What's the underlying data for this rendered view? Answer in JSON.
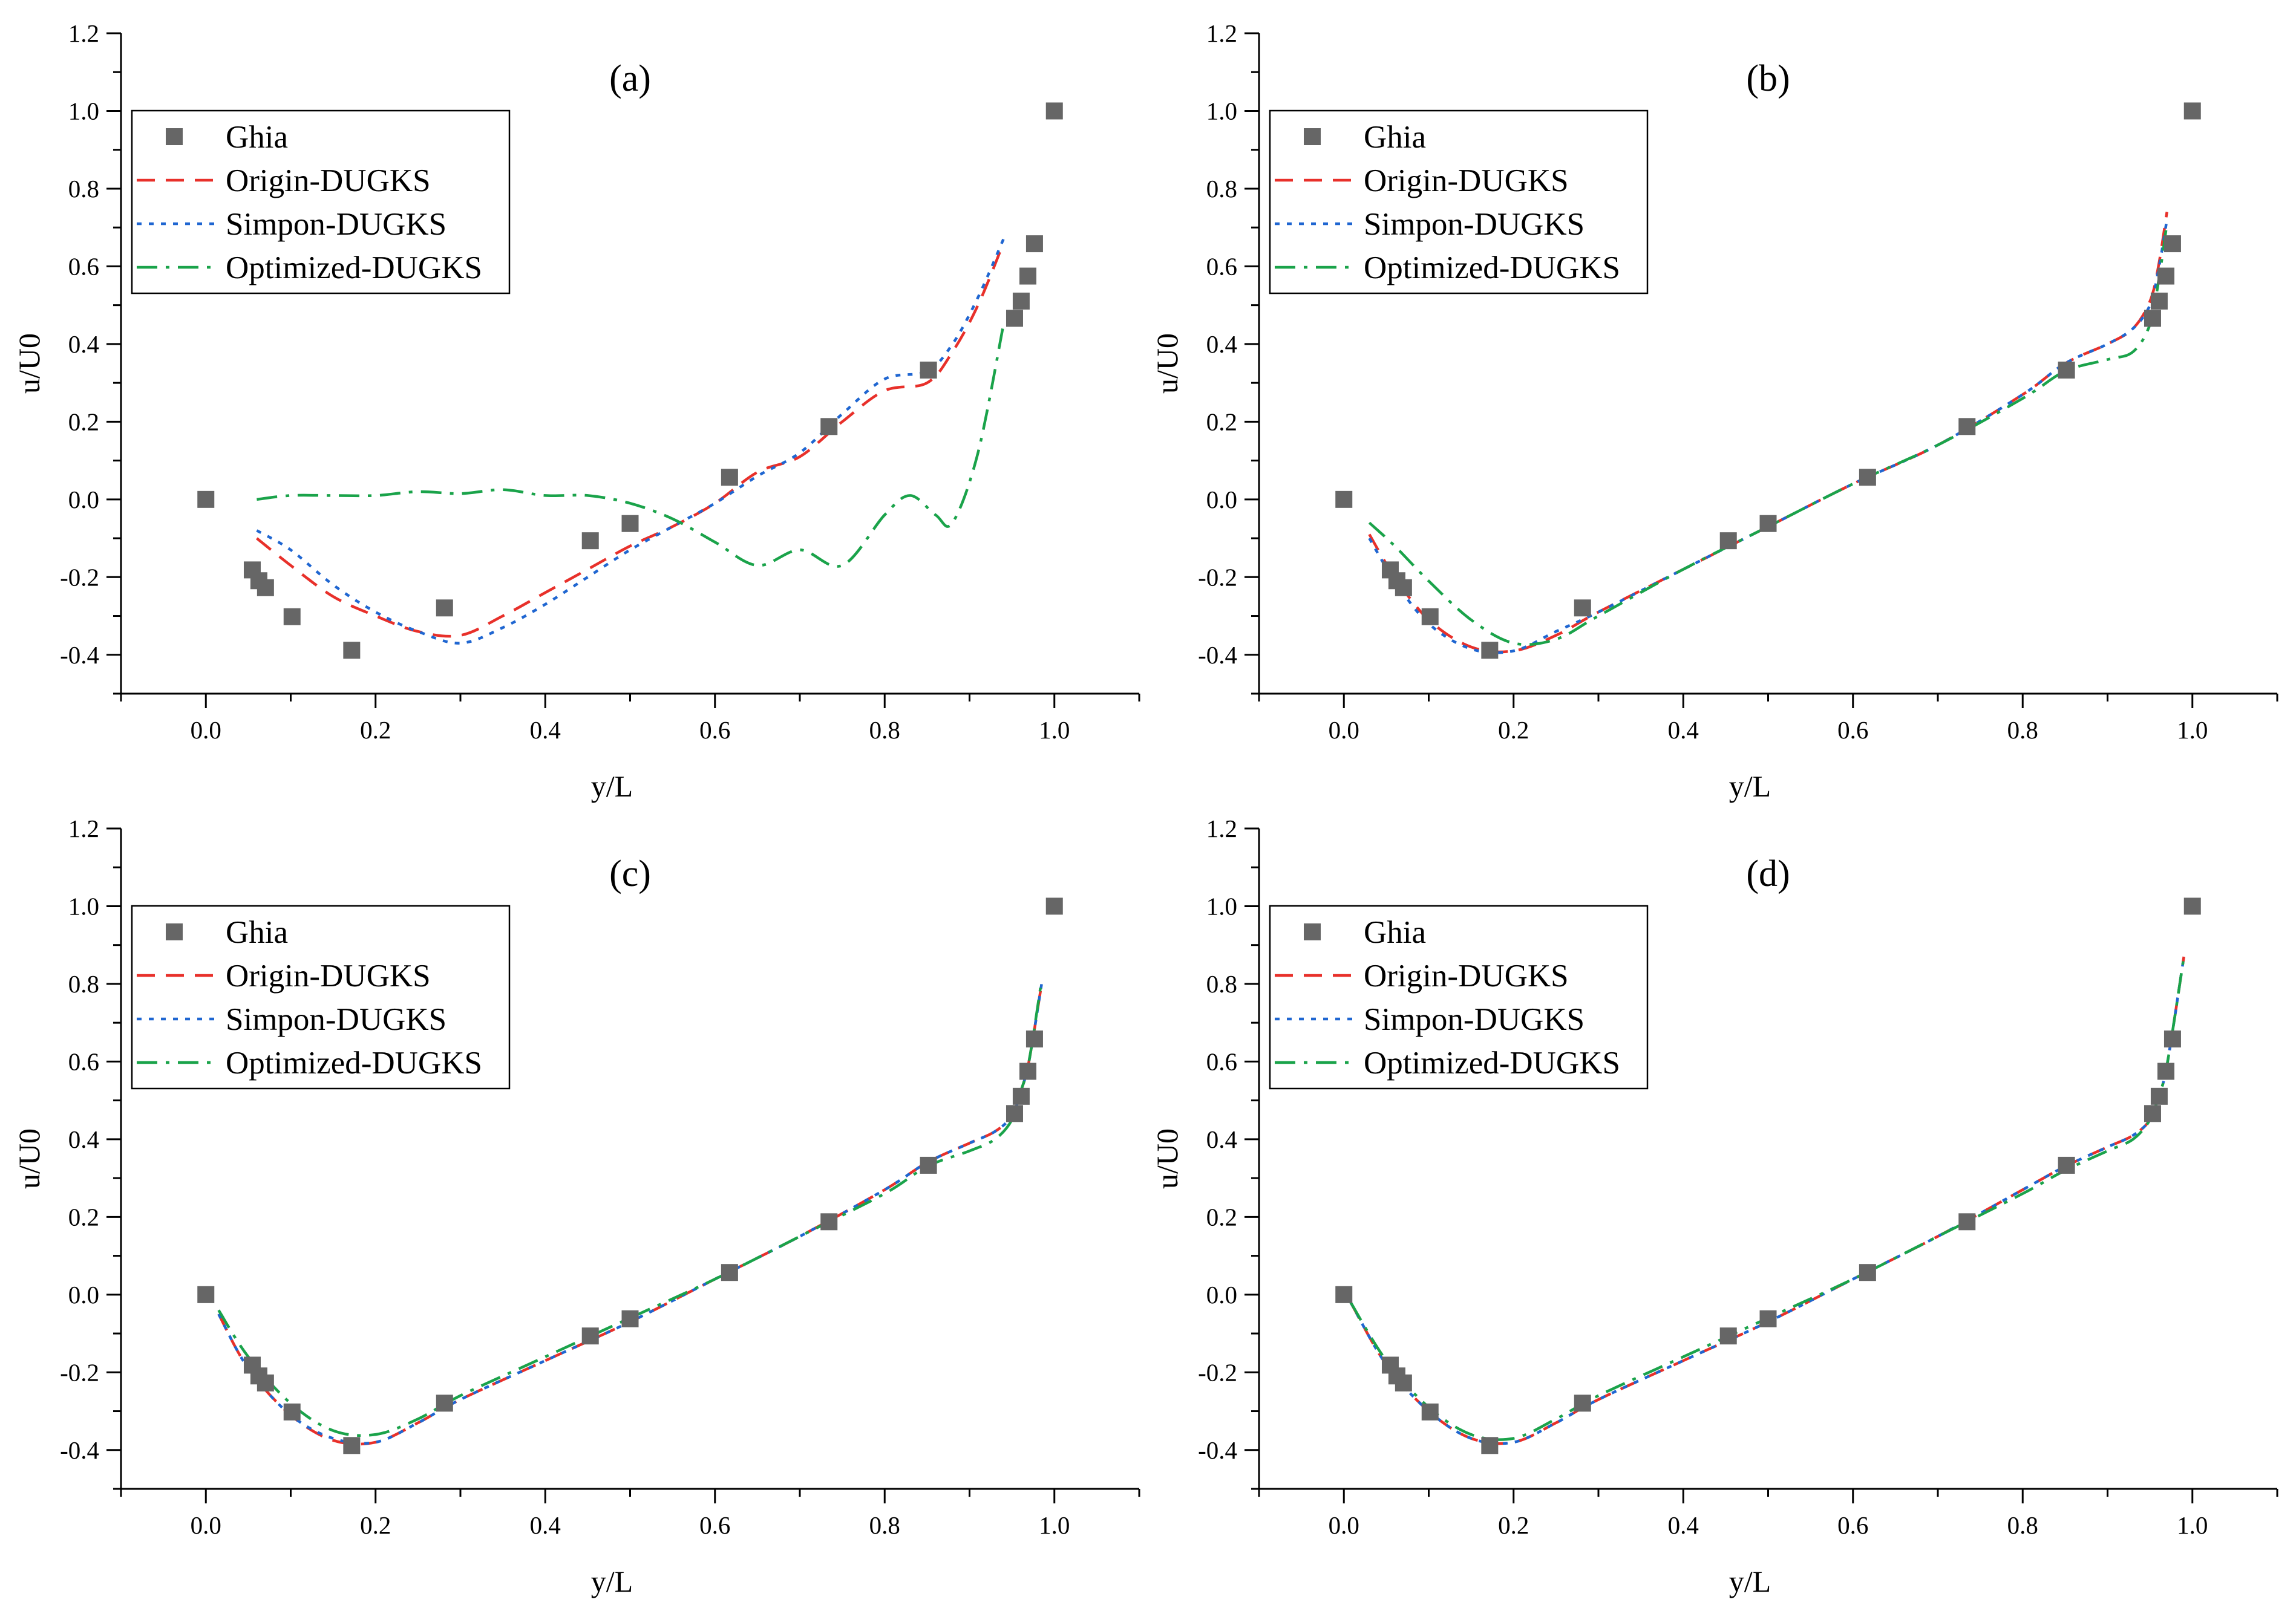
{
  "chart_data": [
    {
      "type": "line",
      "panel_label": "(a)",
      "xlabel": "y/L",
      "ylabel": "u/U0",
      "xlim": [
        -0.1,
        1.1
      ],
      "ylim": [
        -0.5,
        1.2
      ],
      "xticks": [
        "0.0",
        "0.2",
        "0.4",
        "0.6",
        "0.8",
        "1.0"
      ],
      "yticks": [
        "-0.4",
        "-0.2",
        "0.0",
        "0.2",
        "0.4",
        "0.6",
        "0.8",
        "1.0",
        "1.2"
      ],
      "legend_position": "upper-left",
      "reference": {
        "name": "Ghia",
        "x": [
          0.0,
          0.0547,
          0.0625,
          0.0703,
          0.1016,
          0.1719,
          0.2813,
          0.4531,
          0.5,
          0.6172,
          0.7344,
          0.8516,
          0.9531,
          0.9609,
          0.9688,
          0.9766,
          1.0
        ],
        "y": [
          0.0,
          -0.1815,
          -0.2093,
          -0.2273,
          -0.302,
          -0.3884,
          -0.2794,
          -0.1064,
          -0.0621,
          0.057,
          0.1876,
          0.333,
          0.4662,
          0.5106,
          0.5749,
          0.6581,
          1.0
        ]
      },
      "series": [
        {
          "name": "Origin-DUGKS",
          "color": "#e8302a",
          "dash": "dashed",
          "x": [
            0.06,
            0.1,
            0.15,
            0.2,
            0.25,
            0.3,
            0.35,
            0.4,
            0.45,
            0.5,
            0.55,
            0.6,
            0.65,
            0.7,
            0.75,
            0.8,
            0.85,
            0.88,
            0.91,
            0.94
          ],
          "y": [
            -0.1,
            -0.17,
            -0.25,
            -0.3,
            -0.34,
            -0.35,
            -0.3,
            -0.24,
            -0.18,
            -0.12,
            -0.07,
            -0.01,
            0.07,
            0.11,
            0.2,
            0.28,
            0.3,
            0.38,
            0.5,
            0.66
          ]
        },
        {
          "name": "Simpon-DUGKS",
          "color": "#1f66d1",
          "dash": "dotted",
          "x": [
            0.06,
            0.1,
            0.15,
            0.2,
            0.25,
            0.3,
            0.35,
            0.4,
            0.45,
            0.5,
            0.55,
            0.6,
            0.65,
            0.7,
            0.75,
            0.8,
            0.85,
            0.88,
            0.91,
            0.94
          ],
          "y": [
            -0.08,
            -0.13,
            -0.22,
            -0.29,
            -0.34,
            -0.37,
            -0.33,
            -0.27,
            -0.2,
            -0.13,
            -0.07,
            -0.01,
            0.06,
            0.12,
            0.22,
            0.31,
            0.33,
            0.4,
            0.52,
            0.67
          ]
        },
        {
          "name": "Optimized-DUGKS",
          "color": "#1aa34a",
          "dash": "dashdot",
          "x": [
            0.06,
            0.1,
            0.15,
            0.2,
            0.25,
            0.3,
            0.35,
            0.4,
            0.45,
            0.5,
            0.55,
            0.6,
            0.65,
            0.7,
            0.75,
            0.8,
            0.83,
            0.86,
            0.88,
            0.91,
            0.94
          ],
          "y": [
            0.0,
            0.01,
            0.01,
            0.01,
            0.02,
            0.015,
            0.025,
            0.01,
            0.01,
            -0.01,
            -0.05,
            -0.11,
            -0.17,
            -0.13,
            -0.17,
            -0.04,
            0.01,
            -0.04,
            -0.06,
            0.12,
            0.45
          ]
        }
      ]
    },
    {
      "type": "line",
      "panel_label": "(b)",
      "xlabel": "y/L",
      "ylabel": "u/U0",
      "xlim": [
        -0.1,
        1.1
      ],
      "ylim": [
        -0.5,
        1.2
      ],
      "xticks": [
        "0.0",
        "0.2",
        "0.4",
        "0.6",
        "0.8",
        "1.0"
      ],
      "yticks": [
        "-0.4",
        "-0.2",
        "0.0",
        "0.2",
        "0.4",
        "0.6",
        "0.8",
        "1.0",
        "1.2"
      ],
      "legend_position": "upper-left",
      "reference": {
        "name": "Ghia",
        "x": [
          0.0,
          0.0547,
          0.0625,
          0.0703,
          0.1016,
          0.1719,
          0.2813,
          0.4531,
          0.5,
          0.6172,
          0.7344,
          0.8516,
          0.9531,
          0.9609,
          0.9688,
          0.9766,
          1.0
        ],
        "y": [
          0.0,
          -0.1815,
          -0.2093,
          -0.2273,
          -0.302,
          -0.3884,
          -0.2794,
          -0.1064,
          -0.0621,
          0.057,
          0.1876,
          0.333,
          0.4662,
          0.5106,
          0.5749,
          0.6581,
          1.0
        ]
      },
      "series": [
        {
          "name": "Origin-DUGKS",
          "color": "#e8302a",
          "dash": "dashed",
          "x": [
            0.03,
            0.06,
            0.1,
            0.15,
            0.2,
            0.25,
            0.3,
            0.4,
            0.5,
            0.6,
            0.7,
            0.8,
            0.85,
            0.9,
            0.93,
            0.95,
            0.96,
            0.97
          ],
          "y": [
            -0.09,
            -0.2,
            -0.31,
            -0.38,
            -0.39,
            -0.35,
            -0.29,
            -0.18,
            -0.07,
            0.04,
            0.14,
            0.27,
            0.35,
            0.4,
            0.44,
            0.51,
            0.6,
            0.74
          ]
        },
        {
          "name": "Simpon-DUGKS",
          "color": "#1f66d1",
          "dash": "dotted",
          "x": [
            0.03,
            0.06,
            0.1,
            0.15,
            0.2,
            0.25,
            0.3,
            0.4,
            0.5,
            0.6,
            0.7,
            0.8,
            0.85,
            0.9,
            0.93,
            0.95,
            0.96,
            0.97
          ],
          "y": [
            -0.1,
            -0.21,
            -0.32,
            -0.385,
            -0.39,
            -0.34,
            -0.29,
            -0.18,
            -0.07,
            0.04,
            0.14,
            0.27,
            0.35,
            0.4,
            0.44,
            0.5,
            0.59,
            0.72
          ]
        },
        {
          "name": "Optimized-DUGKS",
          "color": "#1aa34a",
          "dash": "dashdot",
          "x": [
            0.03,
            0.06,
            0.1,
            0.15,
            0.2,
            0.25,
            0.3,
            0.4,
            0.5,
            0.6,
            0.7,
            0.8,
            0.85,
            0.9,
            0.93,
            0.95,
            0.96,
            0.97
          ],
          "y": [
            -0.06,
            -0.12,
            -0.21,
            -0.31,
            -0.37,
            -0.36,
            -0.3,
            -0.18,
            -0.07,
            0.04,
            0.14,
            0.26,
            0.33,
            0.36,
            0.38,
            0.45,
            0.56,
            0.71
          ]
        }
      ]
    },
    {
      "type": "line",
      "panel_label": "(c)",
      "xlabel": "y/L",
      "ylabel": "u/U0",
      "xlim": [
        -0.1,
        1.1
      ],
      "ylim": [
        -0.5,
        1.2
      ],
      "xticks": [
        "0.0",
        "0.2",
        "0.4",
        "0.6",
        "0.8",
        "1.0"
      ],
      "yticks": [
        "-0.4",
        "-0.2",
        "0.0",
        "0.2",
        "0.4",
        "0.6",
        "0.8",
        "1.0",
        "1.2"
      ],
      "legend_position": "upper-left",
      "reference": {
        "name": "Ghia",
        "x": [
          0.0,
          0.0547,
          0.0625,
          0.0703,
          0.1016,
          0.1719,
          0.2813,
          0.4531,
          0.5,
          0.6172,
          0.7344,
          0.8516,
          0.9531,
          0.9609,
          0.9688,
          0.9766,
          1.0
        ],
        "y": [
          0.0,
          -0.1815,
          -0.2093,
          -0.2273,
          -0.302,
          -0.3884,
          -0.2794,
          -0.1064,
          -0.0621,
          0.057,
          0.1876,
          0.333,
          0.4662,
          0.5106,
          0.5749,
          0.6581,
          1.0
        ]
      },
      "series": [
        {
          "name": "Origin-DUGKS",
          "color": "#e8302a",
          "dash": "dashed",
          "x": [
            0.015,
            0.05,
            0.1,
            0.15,
            0.2,
            0.25,
            0.3,
            0.4,
            0.5,
            0.6,
            0.7,
            0.8,
            0.85,
            0.9,
            0.93,
            0.95,
            0.96,
            0.97,
            0.985
          ],
          "y": [
            -0.05,
            -0.19,
            -0.31,
            -0.375,
            -0.38,
            -0.33,
            -0.27,
            -0.17,
            -0.07,
            0.04,
            0.15,
            0.27,
            0.34,
            0.39,
            0.42,
            0.46,
            0.52,
            0.6,
            0.8
          ]
        },
        {
          "name": "Simpon-DUGKS",
          "color": "#1f66d1",
          "dash": "dotted",
          "x": [
            0.015,
            0.05,
            0.1,
            0.15,
            0.2,
            0.25,
            0.3,
            0.4,
            0.5,
            0.6,
            0.7,
            0.8,
            0.85,
            0.9,
            0.93,
            0.95,
            0.96,
            0.97,
            0.985
          ],
          "y": [
            -0.05,
            -0.19,
            -0.31,
            -0.37,
            -0.38,
            -0.33,
            -0.27,
            -0.17,
            -0.07,
            0.04,
            0.15,
            0.27,
            0.34,
            0.39,
            0.42,
            0.46,
            0.52,
            0.6,
            0.8
          ]
        },
        {
          "name": "Optimized-DUGKS",
          "color": "#1aa34a",
          "dash": "dashdot",
          "x": [
            0.015,
            0.05,
            0.1,
            0.15,
            0.2,
            0.25,
            0.3,
            0.4,
            0.5,
            0.6,
            0.7,
            0.8,
            0.85,
            0.9,
            0.93,
            0.95,
            0.96,
            0.97,
            0.985
          ],
          "y": [
            -0.04,
            -0.16,
            -0.28,
            -0.35,
            -0.36,
            -0.32,
            -0.26,
            -0.16,
            -0.06,
            0.04,
            0.15,
            0.26,
            0.33,
            0.37,
            0.4,
            0.45,
            0.52,
            0.6,
            0.81
          ]
        }
      ]
    },
    {
      "type": "line",
      "panel_label": "(d)",
      "xlabel": "y/L",
      "ylabel": "u/U0",
      "xlim": [
        -0.1,
        1.1
      ],
      "ylim": [
        -0.5,
        1.2
      ],
      "xticks": [
        "0.0",
        "0.2",
        "0.4",
        "0.6",
        "0.8",
        "1.0"
      ],
      "yticks": [
        "-0.4",
        "-0.2",
        "0.0",
        "0.2",
        "0.4",
        "0.6",
        "0.8",
        "1.0",
        "1.2"
      ],
      "legend_position": "upper-left",
      "reference": {
        "name": "Ghia",
        "x": [
          0.0,
          0.0547,
          0.0625,
          0.0703,
          0.1016,
          0.1719,
          0.2813,
          0.4531,
          0.5,
          0.6172,
          0.7344,
          0.8516,
          0.9531,
          0.9609,
          0.9688,
          0.9766,
          1.0
        ],
        "y": [
          0.0,
          -0.1815,
          -0.2093,
          -0.2273,
          -0.302,
          -0.3884,
          -0.2794,
          -0.1064,
          -0.0621,
          0.057,
          0.1876,
          0.333,
          0.4662,
          0.5106,
          0.5749,
          0.6581,
          1.0
        ]
      },
      "series": [
        {
          "name": "Origin-DUGKS",
          "color": "#e8302a",
          "dash": "dashed",
          "x": [
            0.008,
            0.05,
            0.1,
            0.15,
            0.2,
            0.25,
            0.3,
            0.4,
            0.5,
            0.6,
            0.7,
            0.8,
            0.85,
            0.9,
            0.93,
            0.95,
            0.96,
            0.97,
            0.99
          ],
          "y": [
            -0.02,
            -0.18,
            -0.3,
            -0.37,
            -0.38,
            -0.33,
            -0.27,
            -0.17,
            -0.07,
            0.04,
            0.15,
            0.27,
            0.33,
            0.38,
            0.41,
            0.45,
            0.51,
            0.59,
            0.87
          ]
        },
        {
          "name": "Simpon-DUGKS",
          "color": "#1f66d1",
          "dash": "dotted",
          "x": [
            0.008,
            0.05,
            0.1,
            0.15,
            0.2,
            0.25,
            0.3,
            0.4,
            0.5,
            0.6,
            0.7,
            0.8,
            0.85,
            0.9,
            0.93,
            0.95,
            0.96,
            0.97,
            0.99
          ],
          "y": [
            -0.02,
            -0.18,
            -0.3,
            -0.37,
            -0.38,
            -0.33,
            -0.27,
            -0.17,
            -0.07,
            0.04,
            0.15,
            0.27,
            0.33,
            0.38,
            0.41,
            0.45,
            0.51,
            0.59,
            0.87
          ]
        },
        {
          "name": "Optimized-DUGKS",
          "color": "#1aa34a",
          "dash": "dashdot",
          "x": [
            0.008,
            0.05,
            0.1,
            0.15,
            0.2,
            0.25,
            0.3,
            0.4,
            0.5,
            0.6,
            0.7,
            0.8,
            0.85,
            0.9,
            0.93,
            0.95,
            0.96,
            0.97,
            0.99
          ],
          "y": [
            -0.02,
            -0.17,
            -0.29,
            -0.36,
            -0.37,
            -0.32,
            -0.26,
            -0.16,
            -0.06,
            0.04,
            0.15,
            0.26,
            0.32,
            0.37,
            0.4,
            0.45,
            0.51,
            0.59,
            0.87
          ]
        }
      ]
    }
  ]
}
